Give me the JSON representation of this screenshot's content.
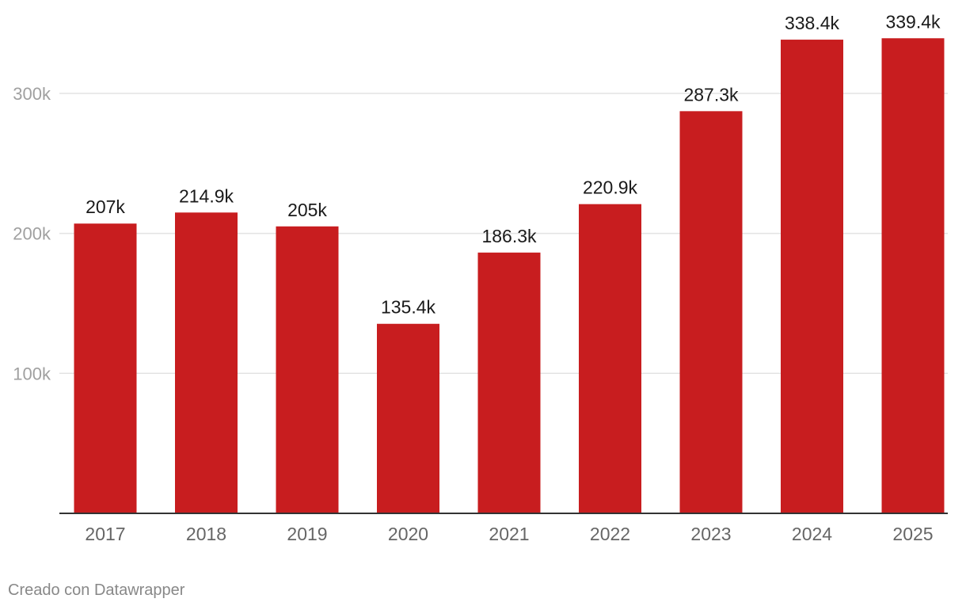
{
  "chart_data": {
    "type": "bar",
    "title": "",
    "xlabel": "",
    "ylabel": "",
    "categories": [
      "2017",
      "2018",
      "2019",
      "2020",
      "2021",
      "2022",
      "2023",
      "2024",
      "2025"
    ],
    "values": [
      207000,
      214900,
      205000,
      135400,
      186300,
      220900,
      287300,
      338400,
      339400
    ],
    "value_labels": [
      "207k",
      "214.9k",
      "205k",
      "135.4k",
      "186.3k",
      "220.9k",
      "287.3k",
      "338.4k",
      "339.4k"
    ],
    "y_ticks": [
      100000,
      200000,
      300000
    ],
    "y_tick_labels": [
      "100k",
      "200k",
      "300k"
    ],
    "ylim": [
      0,
      340000
    ],
    "grid": true,
    "legend": "none",
    "bar_color": "#c81d1f"
  },
  "footer": {
    "credit": "Creado con Datawrapper"
  }
}
